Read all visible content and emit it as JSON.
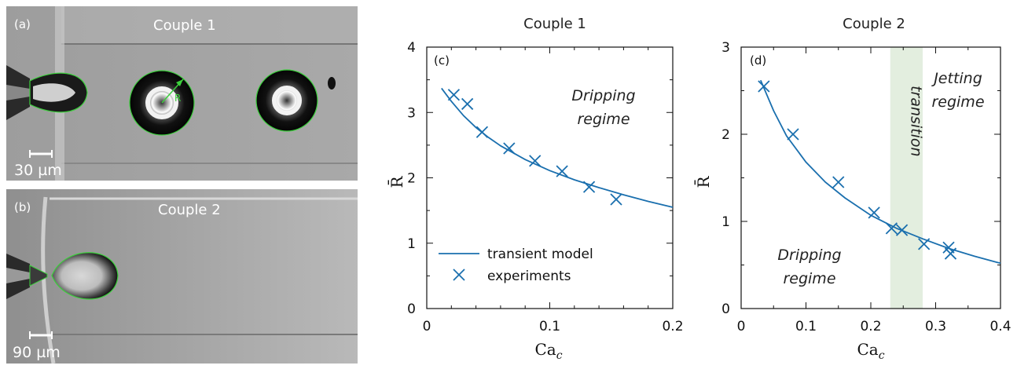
{
  "photos": [
    {
      "panel_label": "(a)",
      "title": "Couple 1",
      "scale_text": "30 µm",
      "radius_label": "R"
    },
    {
      "panel_label": "(b)",
      "title": "Couple 2",
      "scale_text": "90 µm"
    }
  ],
  "chart_data": [
    {
      "type": "line",
      "title": "Couple 1",
      "panel_label": "(c)",
      "xlabel": "Ca",
      "xlabel_sub": "c",
      "ylabel": "R̄",
      "xlim": [
        0,
        0.2
      ],
      "ylim": [
        0,
        4
      ],
      "xticks": [
        "0",
        "0.1",
        "0.2"
      ],
      "yticks": [
        "0",
        "1",
        "2",
        "3",
        "4"
      ],
      "regime_annotations": [
        {
          "line1": "Dripping",
          "line2": "regime"
        }
      ],
      "legend": {
        "model": "transient model",
        "experiments": "experiments"
      },
      "model_curve": {
        "x": [
          0.012,
          0.02,
          0.03,
          0.04,
          0.05,
          0.06,
          0.08,
          0.1,
          0.12,
          0.14,
          0.16,
          0.18,
          0.2
        ],
        "y": [
          3.37,
          3.17,
          2.95,
          2.77,
          2.62,
          2.49,
          2.28,
          2.11,
          1.97,
          1.85,
          1.74,
          1.64,
          1.55
        ]
      },
      "experiments": {
        "x": [
          0.022,
          0.033,
          0.045,
          0.067,
          0.088,
          0.11,
          0.132,
          0.154
        ],
        "y": [
          3.27,
          3.13,
          2.7,
          2.45,
          2.26,
          2.1,
          1.86,
          1.67
        ]
      }
    },
    {
      "type": "line",
      "title": "Couple 2",
      "panel_label": "(d)",
      "xlabel": "Ca",
      "xlabel_sub": "c",
      "ylabel": "R̄",
      "xlim": [
        0,
        0.4
      ],
      "ylim": [
        0,
        3
      ],
      "xticks": [
        "0",
        "0.1",
        "0.2",
        "0.3",
        "0.4"
      ],
      "yticks": [
        "0",
        "1",
        "2",
        "3"
      ],
      "transition_band": {
        "x0": 0.23,
        "x1": 0.28,
        "label": "transition",
        "color": "#e3eedf"
      },
      "regime_annotations": [
        {
          "line1": "Jetting",
          "line2": "regime"
        },
        {
          "line1": "Dripping",
          "line2": "regime"
        }
      ],
      "model_curve": {
        "x": [
          0.03,
          0.05,
          0.07,
          0.1,
          0.13,
          0.16,
          0.2,
          0.24,
          0.28,
          0.32,
          0.36,
          0.4
        ],
        "y": [
          2.62,
          2.27,
          1.98,
          1.68,
          1.45,
          1.27,
          1.07,
          0.92,
          0.8,
          0.69,
          0.6,
          0.52
        ]
      },
      "experiments": {
        "x": [
          0.035,
          0.08,
          0.15,
          0.205,
          0.232,
          0.248,
          0.282,
          0.32,
          0.323
        ],
        "y": [
          2.55,
          2.0,
          1.45,
          1.1,
          0.92,
          0.9,
          0.74,
          0.7,
          0.63
        ]
      }
    }
  ],
  "colors": {
    "curve": "#1a6fae",
    "marker": "#1a6fae",
    "droplet_outline": "#3ccf3c"
  }
}
